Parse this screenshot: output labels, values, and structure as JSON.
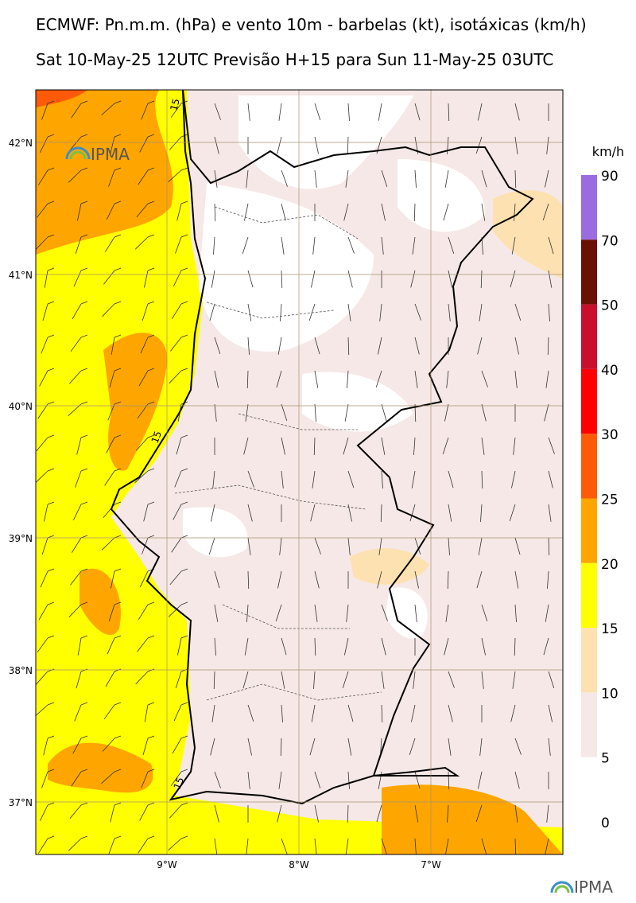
{
  "header": {
    "title": "ECMWF: Pn.m.m. (hPa) e vento 10m - barbelas (kt), isotáxicas (km/h)",
    "subtitle": "Sat 10-May-25 12UTC Previsão H+15 para Sun 11-May-25 03UTC"
  },
  "map": {
    "lat_labels": [
      "42°N",
      "41°N",
      "40°N",
      "39°N",
      "38°N",
      "37°N"
    ],
    "lon_labels": [
      "9°W",
      "8°W",
      "7°W"
    ],
    "contour_labels": [
      "15",
      "15",
      "15"
    ],
    "logo": "IPMA"
  },
  "colorbar": {
    "unit": "km/h",
    "ticks": [
      90,
      70,
      50,
      40,
      30,
      25,
      20,
      15,
      10,
      5,
      0
    ],
    "colors": [
      "#9b6be0",
      "#6b1005",
      "#c8102e",
      "#ff0000",
      "#ff5a0a",
      "#ffa500",
      "#ffff00",
      "#fde1b0",
      "#f5e8e6"
    ]
  }
}
